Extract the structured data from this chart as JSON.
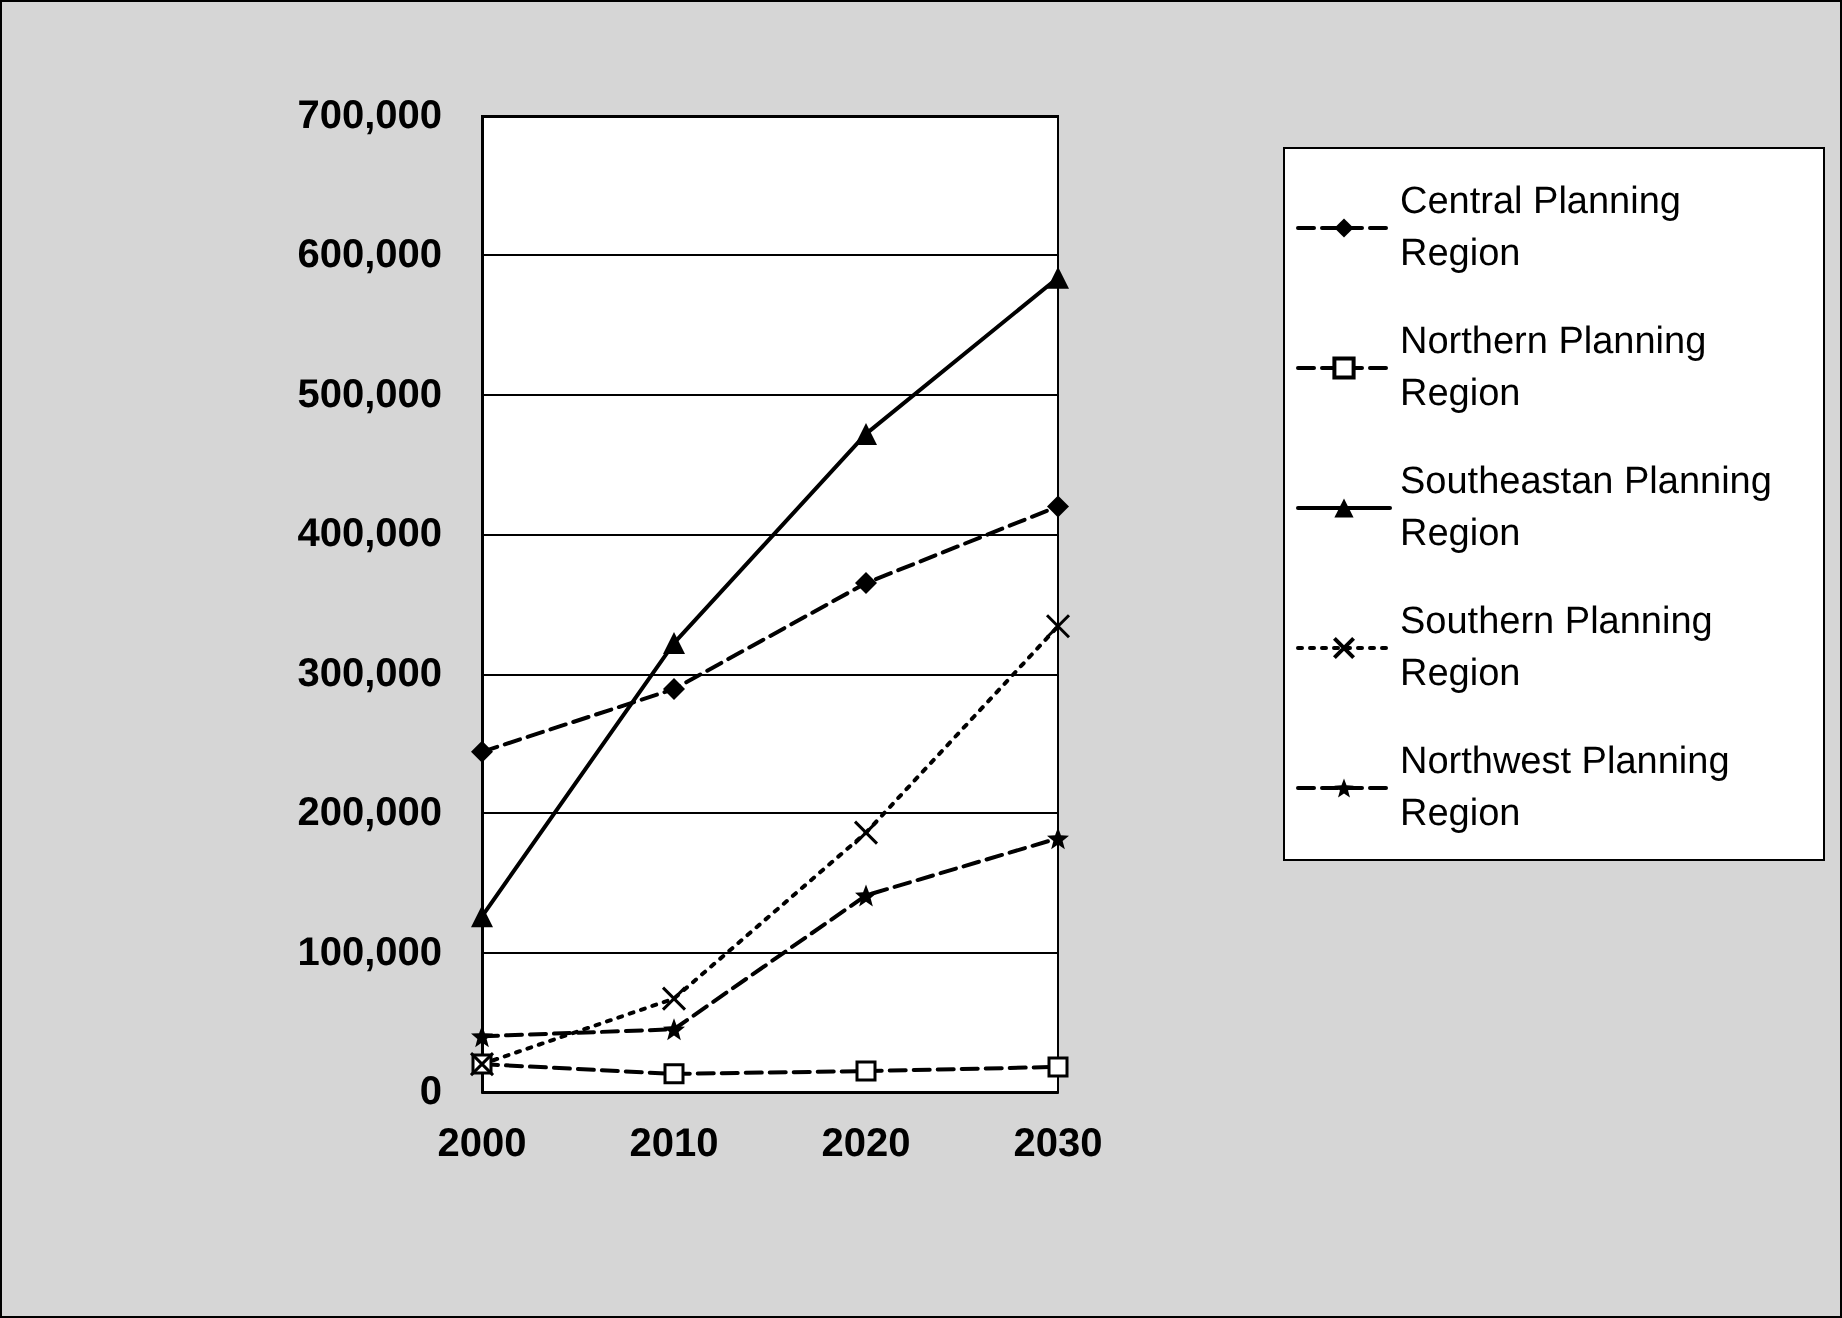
{
  "chart_data": {
    "type": "line",
    "categories": [
      "2000",
      "2010",
      "2020",
      "2030"
    ],
    "series": [
      {
        "name": "Central Planning Region",
        "color": "#000000",
        "values": [
          244000,
          289000,
          365000,
          420000
        ],
        "marker": "diamond",
        "line_style": "dashed"
      },
      {
        "name": "Northern Planning Region",
        "color": "#000000",
        "values": [
          20000,
          13000,
          15000,
          18000
        ],
        "marker": "square",
        "line_style": "dashed"
      },
      {
        "name": "Southeastan Planning Region",
        "color": "#000000",
        "values": [
          126000,
          322000,
          472000,
          584000
        ],
        "marker": "triangle",
        "line_style": "solid"
      },
      {
        "name": "Southern Planning Region",
        "color": "#000000",
        "values": [
          20000,
          67000,
          186000,
          334000
        ],
        "marker": "cross",
        "line_style": "dotted"
      },
      {
        "name": "Northwest Planning Region",
        "color": "#000000",
        "values": [
          40000,
          45000,
          141000,
          182000
        ],
        "marker": "star",
        "line_style": "dashed"
      }
    ],
    "ylim": [
      0,
      700000
    ],
    "yticks": [
      0,
      {
        "value": 100000,
        "label": "100,000"
      },
      {
        "value": 200000,
        "label": "200,000"
      },
      {
        "value": 300000,
        "label": "300,000"
      },
      {
        "value": 400000,
        "label": "400,000"
      },
      {
        "value": 500000,
        "label": "500,000"
      },
      {
        "value": 600000,
        "label": "600,000"
      },
      {
        "value": 700000,
        "label": "700,000"
      }
    ],
    "grid": "y",
    "legend": "right"
  }
}
